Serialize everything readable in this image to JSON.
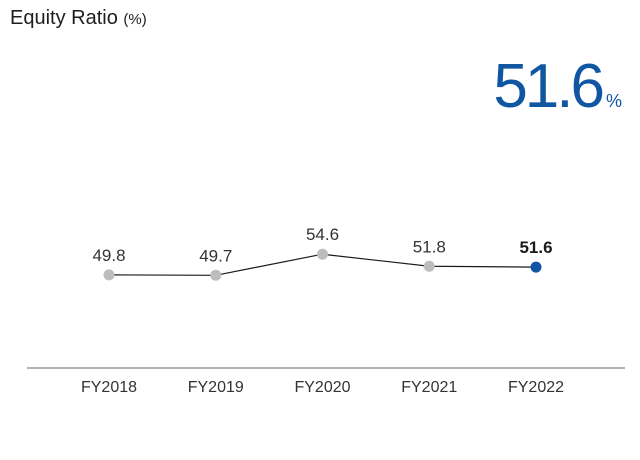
{
  "title": {
    "text": "Equity Ratio",
    "unit": "(%)"
  },
  "headline": {
    "value": "51.6",
    "unit": "%"
  },
  "colors": {
    "accent": "#1156a3",
    "point": "#bdbdbd",
    "line": "#1a1a1a",
    "axis": "#666666"
  },
  "chart_data": {
    "type": "line",
    "title": "Equity Ratio (%)",
    "xlabel": "",
    "ylabel": "",
    "categories": [
      "FY2018",
      "FY2019",
      "FY2020",
      "FY2021",
      "FY2022"
    ],
    "series": [
      {
        "values": [
          49.8,
          49.7,
          54.6,
          51.8,
          51.6
        ]
      }
    ],
    "data_labels": [
      "49.8",
      "49.7",
      "54.6",
      "51.8",
      "51.6"
    ],
    "highlight_index": 4,
    "ylim": [
      30,
      65
    ],
    "grid": false,
    "legend": "none"
  }
}
